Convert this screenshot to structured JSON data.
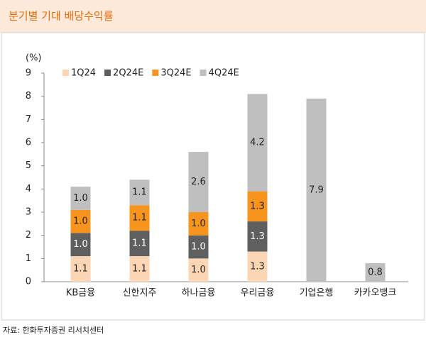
{
  "chart_data": {
    "type": "stacked-bar",
    "title": "분기별 기대 배당수익률",
    "y_label": "(%)",
    "source": "자료: 한화투자증권 리서치센터",
    "categories": [
      "KB금융",
      "신한지주",
      "하나금융",
      "우리금융",
      "기업은행",
      "카카오뱅크"
    ],
    "series": [
      {
        "name": "1Q24",
        "color": "#fcd5b5",
        "values": [
          1.1,
          1.1,
          1.0,
          1.3,
          null,
          null
        ],
        "value_labels": [
          "1.1",
          "1.1",
          "1.0",
          "1.3",
          null,
          null
        ]
      },
      {
        "name": "2Q24E",
        "color": "#5f5f5f",
        "values": [
          1.0,
          1.1,
          1.0,
          1.3,
          null,
          null
        ],
        "value_labels": [
          "1.0",
          "1.1",
          "1.0",
          "1.3",
          null,
          null
        ]
      },
      {
        "name": "3Q24E",
        "color": "#f7941d",
        "values": [
          1.0,
          1.1,
          1.0,
          1.3,
          null,
          null
        ],
        "value_labels": [
          "1.0",
          "1.1",
          "1.0",
          "1.3",
          null,
          null
        ]
      },
      {
        "name": "4Q24E",
        "color": "#bfbfbf",
        "values": [
          1.0,
          1.1,
          2.6,
          4.2,
          7.9,
          0.8
        ],
        "value_labels": [
          "1.0",
          "1.1",
          "2.6",
          "4.2",
          "7.9",
          "0.8"
        ]
      }
    ],
    "ylim": [
      0,
      9
    ],
    "yticks": [
      0,
      1,
      2,
      3,
      4,
      5,
      6,
      7,
      8,
      9
    ],
    "grid": false,
    "legend": "top-left"
  }
}
